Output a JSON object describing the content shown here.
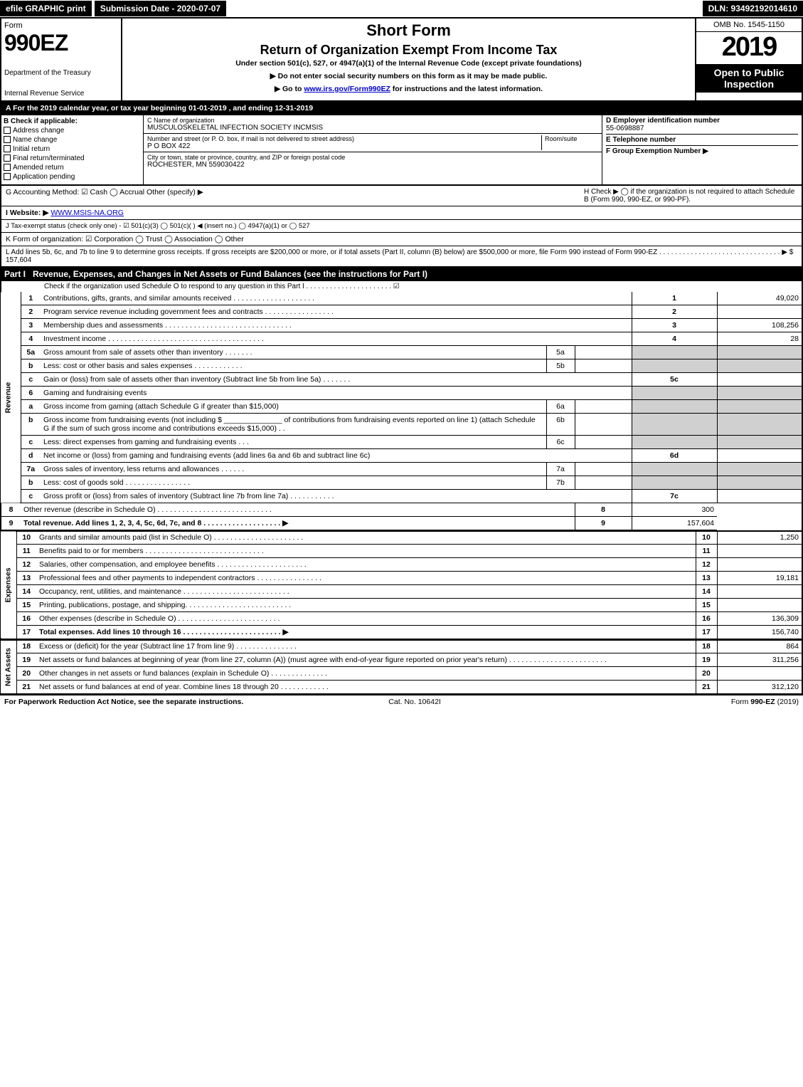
{
  "topbar": {
    "efile": "efile GRAPHIC print",
    "subdate": "Submission Date - 2020-07-07",
    "dln": "DLN: 93492192014610"
  },
  "header": {
    "form_label": "Form",
    "form_no": "990EZ",
    "dept": "Department of the Treasury",
    "irs": "Internal Revenue Service",
    "short_form": "Short Form",
    "title": "Return of Organization Exempt From Income Tax",
    "under": "Under section 501(c), 527, or 4947(a)(1) of the Internal Revenue Code (except private foundations)",
    "noss": "▶ Do not enter social security numbers on this form as it may be made public.",
    "goto_pre": "▶ Go to ",
    "goto_link": "www.irs.gov/Form990EZ",
    "goto_post": " for instructions and the latest information.",
    "omb": "OMB No. 1545-1150",
    "year": "2019",
    "open": "Open to Public Inspection"
  },
  "line_a": "A For the 2019 calendar year, or tax year beginning 01-01-2019 , and ending 12-31-2019",
  "section_b": {
    "title": "B Check if applicable:",
    "opts": [
      "Address change",
      "Name change",
      "Initial return",
      "Final return/terminated",
      "Amended return",
      "Application pending"
    ]
  },
  "section_c": {
    "name_label": "C Name of organization",
    "name": "MUSCULOSKELETAL INFECTION SOCIETY INCMSIS",
    "street_label": "Number and street (or P. O. box, if mail is not delivered to street address)",
    "room_label": "Room/suite",
    "street": "P O BOX 422",
    "city_label": "City or town, state or province, country, and ZIP or foreign postal code",
    "city": "ROCHESTER, MN  559030422"
  },
  "section_d": {
    "ein_label": "D Employer identification number",
    "ein": "55-0698887",
    "tel_label": "E Telephone number",
    "tel": "",
    "f_label": "F Group Exemption Number ▶",
    "f_val": ""
  },
  "line_g": "G Accounting Method:  ☑ Cash  ◯ Accrual   Other (specify) ▶",
  "line_h": "H  Check ▶  ◯  if the organization is not required to attach Schedule B (Form 990, 990-EZ, or 990-PF).",
  "line_i_pre": "I Website: ▶",
  "line_i_link": "WWW.MSIS-NA.ORG",
  "line_j": "J Tax-exempt status (check only one) - ☑ 501(c)(3) ◯  501(c)(  ) ◀ (insert no.) ◯  4947(a)(1) or  ◯  527",
  "line_k": "K Form of organization:   ☑ Corporation   ◯ Trust   ◯ Association   ◯ Other",
  "line_l": "L Add lines 5b, 6c, and 7b to line 9 to determine gross receipts. If gross receipts are $200,000 or more, or if total assets (Part II, column (B) below) are $500,000 or more, file Form 990 instead of Form 990-EZ  . . . . . . . . . . . . . . . . . . . . . . . . . . . . . . . ▶ $ 157,604",
  "part1": {
    "label": "Part I",
    "title": "Revenue, Expenses, and Changes in Net Assets or Fund Balances (see the instructions for Part I)",
    "schedo": "Check if the organization used Schedule O to respond to any question in this Part I . . . . . . . . . . . . . . . . . . . . . .  ☑"
  },
  "categories": {
    "rev": "Revenue",
    "exp": "Expenses",
    "na": "Net Assets"
  },
  "rows": [
    {
      "n": "1",
      "t": "Contributions, gifts, grants, and similar amounts received . . . . . . . . . . . . . . . . . . . .",
      "r": "1",
      "v": "49,020"
    },
    {
      "n": "2",
      "t": "Program service revenue including government fees and contracts . . . . . . . . . . . . . . . . .",
      "r": "2",
      "v": ""
    },
    {
      "n": "3",
      "t": "Membership dues and assessments . . . . . . . . . . . . . . . . . . . . . . . . . . . . . . .",
      "r": "3",
      "v": "108,256"
    },
    {
      "n": "4",
      "t": "Investment income . . . . . . . . . . . . . . . . . . . . . . . . . . . . . . . . . . . . . .",
      "r": "4",
      "v": "28"
    },
    {
      "n": "5a",
      "t": "Gross amount from sale of assets other than inventory . . . . . . .",
      "m": "5a",
      "mv": ""
    },
    {
      "n": "b",
      "t": "Less: cost or other basis and sales expenses . . . . . . . . . . . .",
      "m": "5b",
      "mv": ""
    },
    {
      "n": "c",
      "t": "Gain or (loss) from sale of assets other than inventory (Subtract line 5b from line 5a) . . . . . . .",
      "r": "5c",
      "v": ""
    },
    {
      "n": "6",
      "t": "Gaming and fundraising events",
      "nobox": true
    },
    {
      "n": "a",
      "t": "Gross income from gaming (attach Schedule G if greater than $15,000)",
      "m": "6a",
      "mv": ""
    },
    {
      "n": "b",
      "t": "Gross income from fundraising events (not including $ ______________ of contributions from fundraising events reported on line 1) (attach Schedule G if the sum of such gross income and contributions exceeds $15,000)     . .",
      "m": "6b",
      "mv": ""
    },
    {
      "n": "c",
      "t": "Less: direct expenses from gaming and fundraising events     . . .",
      "m": "6c",
      "mv": ""
    },
    {
      "n": "d",
      "t": "Net income or (loss) from gaming and fundraising events (add lines 6a and 6b and subtract line 6c)",
      "r": "6d",
      "v": ""
    },
    {
      "n": "7a",
      "t": "Gross sales of inventory, less returns and allowances . . . . . .",
      "m": "7a",
      "mv": ""
    },
    {
      "n": "b",
      "t": "Less: cost of goods sold           . . . . . . . . . . . . . . . .",
      "m": "7b",
      "mv": ""
    },
    {
      "n": "c",
      "t": "Gross profit or (loss) from sales of inventory (Subtract line 7b from line 7a) . . . . . . . . . . .",
      "r": "7c",
      "v": ""
    },
    {
      "n": "8",
      "t": "Other revenue (describe in Schedule O) . . . . . . . . . . . . . . . . . . . . . . . . . . . .",
      "r": "8",
      "v": "300"
    },
    {
      "n": "9",
      "t": "Total revenue. Add lines 1, 2, 3, 4, 5c, 6d, 7c, and 8  . . . . . . . . . . . . . . . . . . .  ▶",
      "r": "9",
      "v": "157,604",
      "bold": true
    }
  ],
  "exp_rows": [
    {
      "n": "10",
      "t": "Grants and similar amounts paid (list in Schedule O) . . . . . . . . . . . . . . . . . . . . . .",
      "r": "10",
      "v": "1,250"
    },
    {
      "n": "11",
      "t": "Benefits paid to or for members     . . . . . . . . . . . . . . . . . . . . . . . . . . . . .",
      "r": "11",
      "v": ""
    },
    {
      "n": "12",
      "t": "Salaries, other compensation, and employee benefits . . . . . . . . . . . . . . . . . . . . . .",
      "r": "12",
      "v": ""
    },
    {
      "n": "13",
      "t": "Professional fees and other payments to independent contractors . . . . . . . . . . . . . . . .",
      "r": "13",
      "v": "19,181"
    },
    {
      "n": "14",
      "t": "Occupancy, rent, utilities, and maintenance . . . . . . . . . . . . . . . . . . . . . . . . . .",
      "r": "14",
      "v": ""
    },
    {
      "n": "15",
      "t": "Printing, publications, postage, and shipping. . . . . . . . . . . . . . . . . . . . . . . . . .",
      "r": "15",
      "v": ""
    },
    {
      "n": "16",
      "t": "Other expenses (describe in Schedule O)     . . . . . . . . . . . . . . . . . . . . . . . . .",
      "r": "16",
      "v": "136,309"
    },
    {
      "n": "17",
      "t": "Total expenses. Add lines 10 through 16    . . . . . . . . . . . . . . . . . . . . . . . .  ▶",
      "r": "17",
      "v": "156,740",
      "bold": true
    }
  ],
  "na_rows": [
    {
      "n": "18",
      "t": "Excess or (deficit) for the year (Subtract line 17 from line 9)       . . . . . . . . . . . . . . .",
      "r": "18",
      "v": "864"
    },
    {
      "n": "19",
      "t": "Net assets or fund balances at beginning of year (from line 27, column (A)) (must agree with end-of-year figure reported on prior year's return) . . . . . . . . . . . . . . . . . . . . . . . .",
      "r": "19",
      "v": "311,256"
    },
    {
      "n": "20",
      "t": "Other changes in net assets or fund balances (explain in Schedule O) . . . . . . . . . . . . . .",
      "r": "20",
      "v": ""
    },
    {
      "n": "21",
      "t": "Net assets or fund balances at end of year. Combine lines 18 through 20 . . . . . . . . . . . .",
      "r": "21",
      "v": "312,120"
    }
  ],
  "footer": {
    "left": "For Paperwork Reduction Act Notice, see the separate instructions.",
    "mid": "Cat. No. 10642I",
    "right": "Form 990-EZ (2019)"
  },
  "colors": {
    "black": "#000000",
    "grey": "#d0d0d0",
    "link": "#0000cc",
    "chk": "#3a6ea5"
  }
}
